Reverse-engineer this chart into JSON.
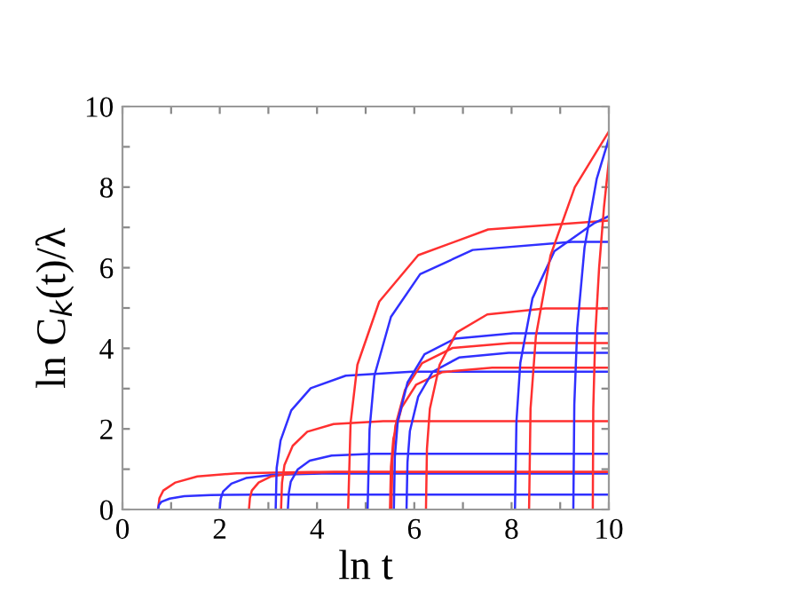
{
  "chart_data": {
    "type": "line",
    "xlabel": "ln t",
    "ylabel": "ln C$_{k}$(t)/λ",
    "xlim": [
      0,
      10
    ],
    "ylim": [
      0,
      10
    ],
    "xticks": [
      0,
      {
        "value": 1,
        "label": null
      },
      2,
      {
        "value": 3,
        "label": null
      },
      4,
      {
        "value": 5,
        "label": null
      },
      6,
      {
        "value": 7,
        "label": null
      },
      8,
      {
        "value": 9,
        "label": null
      },
      10
    ],
    "yticks": [
      0,
      {
        "value": 1,
        "label": null
      },
      2,
      {
        "value": 3,
        "label": null
      },
      4,
      {
        "value": 5,
        "label": null
      },
      6,
      {
        "value": 7,
        "label": null
      },
      8,
      {
        "value": 9,
        "label": null
      },
      10
    ],
    "grid": false,
    "legend": false,
    "marker": "none",
    "line_style": "solid",
    "series": [
      {
        "color": "#ff3030",
        "x": [
          0.73,
          0.76,
          0.84,
          1.09,
          1.54,
          2.35,
          3.88,
          10
        ],
        "values": [
          0,
          0.28,
          0.47,
          0.67,
          0.82,
          0.9,
          0.93,
          0.93
        ]
      },
      {
        "color": "#3030ff",
        "x": [
          0.73,
          0.75,
          0.8,
          0.97,
          1.27,
          1.81,
          2.83,
          10
        ],
        "values": [
          0,
          0.11,
          0.19,
          0.27,
          0.33,
          0.36,
          0.37,
          0.37
        ]
      },
      {
        "color": "#3030ff",
        "x": [
          2.0,
          2.02,
          2.07,
          2.24,
          2.54,
          3.08,
          4.1,
          10
        ],
        "values": [
          0,
          0.27,
          0.45,
          0.64,
          0.78,
          0.86,
          0.89,
          0.89
        ]
      },
      {
        "color": "#ff3030",
        "x": [
          2.6,
          2.62,
          2.66,
          2.8,
          3.05,
          3.5,
          4.35,
          10
        ],
        "values": [
          0,
          0.28,
          0.47,
          0.67,
          0.82,
          0.9,
          0.93,
          0.93
        ]
      },
      {
        "color": "#3030ff",
        "x": [
          3.15,
          3.17,
          3.25,
          3.47,
          3.87,
          4.59,
          5.95,
          10
        ],
        "values": [
          0,
          1.03,
          1.71,
          2.46,
          3.01,
          3.32,
          3.42,
          3.42
        ]
      },
      {
        "color": "#ff3030",
        "x": [
          3.26,
          3.28,
          3.33,
          3.5,
          3.8,
          4.34,
          5.36,
          10
        ],
        "values": [
          0,
          0.66,
          1.1,
          1.58,
          1.93,
          2.12,
          2.19,
          2.19
        ]
      },
      {
        "color": "#3030ff",
        "x": [
          3.4,
          3.42,
          3.46,
          3.6,
          3.85,
          4.3,
          5.15,
          10
        ],
        "values": [
          0,
          0.41,
          0.69,
          0.99,
          1.21,
          1.34,
          1.38,
          1.38
        ]
      },
      {
        "color": "#ff3030",
        "x": [
          4.64,
          4.69,
          4.83,
          5.28,
          6.08,
          7.52,
          10
        ],
        "values": [
          0,
          2.15,
          3.59,
          5.16,
          6.31,
          6.95,
          7.17
        ]
      },
      {
        "color": "#3030ff",
        "x": [
          5.04,
          5.08,
          5.18,
          5.52,
          6.12,
          7.2,
          9.24,
          10
        ],
        "values": [
          0,
          1.99,
          3.32,
          4.78,
          5.84,
          6.44,
          6.64,
          6.64
        ]
      },
      {
        "color": "#ff3030",
        "x": [
          5.5,
          5.52,
          5.57,
          5.74,
          6.04,
          6.58,
          7.6,
          10
        ],
        "values": [
          0,
          1.06,
          1.76,
          2.53,
          3.1,
          3.41,
          3.52,
          3.52
        ]
      },
      {
        "color": "#ff3030",
        "x": [
          5.53,
          5.55,
          5.61,
          5.81,
          6.16,
          6.79,
          7.98,
          10
        ],
        "values": [
          0,
          1.24,
          2.07,
          2.97,
          3.63,
          4.01,
          4.13,
          4.13
        ]
      },
      {
        "color": "#3030ff",
        "x": [
          5.58,
          5.6,
          5.66,
          5.86,
          6.21,
          6.84,
          8.03,
          10
        ],
        "values": [
          0,
          1.31,
          2.19,
          3.15,
          3.85,
          4.24,
          4.37,
          4.37
        ]
      },
      {
        "color": "#3030ff",
        "x": [
          5.84,
          5.86,
          5.91,
          6.08,
          6.38,
          6.92,
          7.94,
          10
        ],
        "values": [
          0,
          1.17,
          1.95,
          2.8,
          3.42,
          3.77,
          3.89,
          3.89
        ]
      },
      {
        "color": "#ff3030",
        "x": [
          6.24,
          6.26,
          6.32,
          6.52,
          6.87,
          7.5,
          8.69,
          10
        ],
        "values": [
          0,
          1.5,
          2.5,
          3.59,
          4.39,
          4.84,
          4.99,
          4.99
        ]
      },
      {
        "color": "#3030ff",
        "x": [
          8.07,
          8.1,
          8.18,
          8.43,
          8.88,
          9.69,
          10
        ],
        "values": [
          0,
          2.18,
          3.64,
          5.24,
          6.41,
          7.1,
          7.28
        ]
      },
      {
        "color": "#ff3030",
        "x": [
          8.36,
          8.39,
          8.5,
          8.8,
          9.3,
          10
        ],
        "values": [
          0,
          2.5,
          4.3,
          6.3,
          8.0,
          9.38
        ]
      },
      {
        "color": "#3030ff",
        "x": [
          9.27,
          9.29,
          9.35,
          9.5,
          9.75,
          10
        ],
        "values": [
          0,
          2.6,
          4.5,
          6.5,
          8.2,
          9.2
        ]
      },
      {
        "color": "#ff3030",
        "x": [
          9.67,
          9.68,
          9.72,
          9.8,
          9.9,
          10
        ],
        "values": [
          0,
          2.5,
          4.3,
          6.0,
          7.5,
          8.65
        ]
      }
    ]
  }
}
